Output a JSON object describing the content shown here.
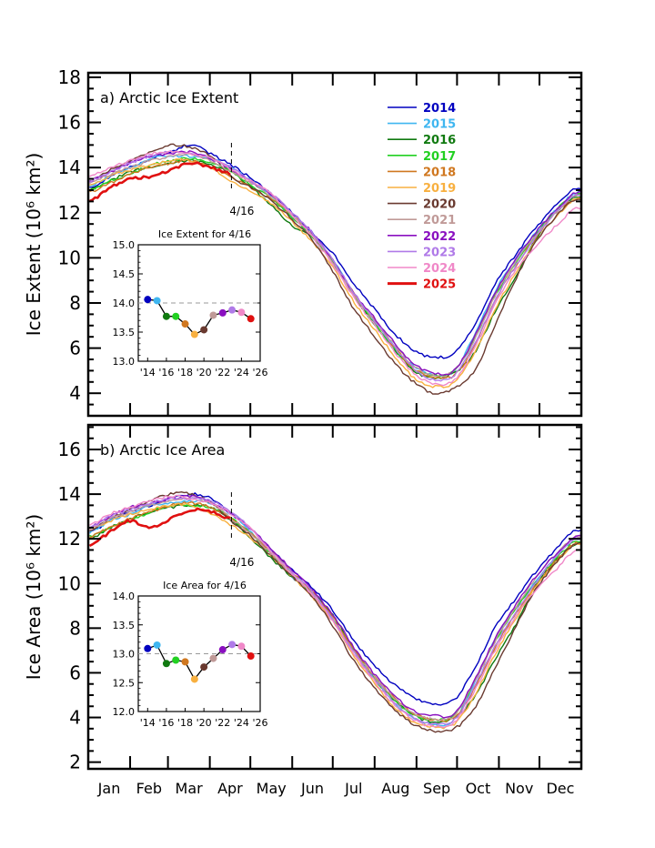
{
  "chart_data": [
    {
      "type": "line",
      "panel": "a",
      "title": "a) Arctic Ice Extent",
      "xlabel": "",
      "ylabel": "Ice Extent (10⁶ km²)",
      "ylim": [
        3,
        18.2
      ],
      "xlim": [
        0,
        365
      ],
      "yticks": [
        4,
        6,
        8,
        10,
        12,
        14,
        16,
        18
      ],
      "x_tick_labels": [
        "Jan",
        "Feb",
        "Mar",
        "Apr",
        "May",
        "Jun",
        "Jul",
        "Aug",
        "Sep",
        "Oct",
        "Nov",
        "Dec"
      ],
      "month_start_days": [
        0,
        31,
        59,
        90,
        120,
        151,
        181,
        212,
        243,
        273,
        304,
        334
      ],
      "marker": {
        "day": 106,
        "label": "4/16"
      },
      "x": [
        1,
        16,
        31,
        46,
        61,
        76,
        91,
        106,
        121,
        136,
        151,
        166,
        181,
        196,
        211,
        226,
        241,
        256,
        271,
        286,
        301,
        316,
        331,
        346,
        361
      ],
      "series": [
        {
          "name": "2014",
          "color": "#0000c0",
          "values": [
            13.1,
            13.6,
            14.0,
            14.4,
            14.7,
            15.0,
            14.6,
            14.1,
            13.5,
            12.8,
            12.0,
            11.1,
            10.2,
            8.9,
            7.8,
            6.7,
            5.9,
            5.6,
            5.8,
            7.0,
            8.8,
            10.1,
            11.3,
            12.3,
            13.1
          ]
        },
        {
          "name": "2015",
          "color": "#3fb6f0",
          "values": [
            13.2,
            13.6,
            14.0,
            14.4,
            14.5,
            14.5,
            14.4,
            14.0,
            13.4,
            12.7,
            11.8,
            11.0,
            9.9,
            8.5,
            7.3,
            6.1,
            5.2,
            4.8,
            5.0,
            6.6,
            8.5,
            9.9,
            11.1,
            12.1,
            12.9
          ]
        },
        {
          "name": "2016",
          "color": "#107a10",
          "values": [
            13.0,
            13.4,
            13.8,
            14.0,
            14.2,
            14.3,
            14.1,
            13.8,
            13.1,
            12.3,
            11.4,
            10.9,
            9.9,
            8.4,
            7.1,
            6.0,
            5.0,
            4.7,
            4.9,
            5.8,
            7.6,
            9.1,
            10.8,
            12.0,
            12.7
          ]
        },
        {
          "name": "2017",
          "color": "#22d022",
          "values": [
            13.0,
            13.4,
            13.7,
            14.1,
            14.3,
            14.4,
            14.2,
            13.8,
            13.2,
            12.6,
            11.8,
            10.9,
            9.8,
            8.4,
            7.2,
            6.0,
            5.1,
            4.8,
            5.0,
            6.4,
            8.3,
            9.7,
            11.0,
            12.1,
            12.8
          ]
        },
        {
          "name": "2018",
          "color": "#d07820",
          "values": [
            12.9,
            13.3,
            13.7,
            14.0,
            14.2,
            14.3,
            14.0,
            13.6,
            13.1,
            12.6,
            11.9,
            11.0,
            9.9,
            8.5,
            7.3,
            6.1,
            5.1,
            4.7,
            4.8,
            6.1,
            8.1,
            9.6,
            10.9,
            12.0,
            12.6
          ]
        },
        {
          "name": "2019",
          "color": "#f8b040",
          "values": [
            13.2,
            13.6,
            13.9,
            14.1,
            14.3,
            14.3,
            14.0,
            13.4,
            12.9,
            12.4,
            11.6,
            10.7,
            9.6,
            8.1,
            6.9,
            5.7,
            4.7,
            4.3,
            4.5,
            5.8,
            7.7,
            9.3,
            10.7,
            11.8,
            12.6
          ]
        },
        {
          "name": "2020",
          "color": "#6a3a30",
          "values": [
            13.4,
            13.9,
            14.3,
            14.7,
            15.0,
            14.9,
            14.5,
            13.6,
            13.1,
            12.5,
            11.7,
            10.8,
            9.4,
            7.8,
            6.6,
            5.4,
            4.5,
            4.0,
            4.2,
            5.0,
            7.0,
            9.0,
            10.7,
            11.8,
            12.6
          ]
        },
        {
          "name": "2021",
          "color": "#c09a98",
          "values": [
            13.3,
            13.7,
            14.0,
            14.3,
            14.5,
            14.6,
            14.3,
            13.8,
            13.3,
            12.7,
            11.9,
            11.0,
            9.8,
            8.4,
            7.3,
            6.2,
            5.2,
            4.8,
            5.0,
            6.4,
            8.3,
            9.8,
            11.0,
            12.0,
            12.8
          ]
        },
        {
          "name": "2022",
          "color": "#8a10c0",
          "values": [
            13.4,
            13.8,
            14.2,
            14.5,
            14.6,
            14.7,
            14.4,
            13.9,
            13.4,
            12.8,
            12.0,
            11.1,
            9.9,
            8.5,
            7.4,
            6.3,
            5.3,
            4.9,
            5.0,
            6.5,
            8.4,
            9.9,
            11.1,
            12.1,
            12.9
          ]
        },
        {
          "name": "2023",
          "color": "#b07ae8",
          "values": [
            13.4,
            13.8,
            14.2,
            14.5,
            14.7,
            14.6,
            14.4,
            14.0,
            13.4,
            12.8,
            12.0,
            11.1,
            9.9,
            8.5,
            7.3,
            6.1,
            5.1,
            4.6,
            4.8,
            6.2,
            8.1,
            9.6,
            10.9,
            12.0,
            12.8
          ]
        },
        {
          "name": "2024",
          "color": "#f088c8",
          "values": [
            13.6,
            14.0,
            14.3,
            14.6,
            14.7,
            14.6,
            14.4,
            13.9,
            13.4,
            12.8,
            11.9,
            10.9,
            9.7,
            8.3,
            7.1,
            5.9,
            4.9,
            4.4,
            4.6,
            6.0,
            7.9,
            9.4,
            10.5,
            11.4,
            12.2
          ]
        },
        {
          "name": "2025",
          "color": "#e01010",
          "values": [
            12.5,
            13.1,
            13.5,
            13.6,
            13.9,
            14.2,
            14.0,
            13.7
          ]
        }
      ],
      "inset": {
        "title": "Ice Extent for 4/16",
        "ylim": [
          13.0,
          15.0
        ],
        "yticks": [
          "13.0",
          "13.5",
          "14.0",
          "14.5",
          "15.0"
        ],
        "xlim": [
          2013,
          2026
        ],
        "xticks": [
          "'14",
          "'16",
          "'18",
          "'20",
          "'22",
          "'24",
          "'26"
        ],
        "reference_line": 14.0,
        "years": [
          2014,
          2015,
          2016,
          2017,
          2018,
          2019,
          2020,
          2021,
          2022,
          2023,
          2024,
          2025
        ],
        "values": [
          14.06,
          14.04,
          13.77,
          13.77,
          13.64,
          13.46,
          13.54,
          13.79,
          13.83,
          13.88,
          13.84,
          13.73
        ]
      }
    },
    {
      "type": "line",
      "panel": "b",
      "title": "b) Arctic Ice Area",
      "xlabel": "",
      "ylabel": "Ice Area (10⁶ km²)",
      "ylim": [
        1.7,
        17.1
      ],
      "xlim": [
        0,
        365
      ],
      "yticks": [
        2,
        4,
        6,
        8,
        10,
        12,
        14,
        16
      ],
      "x_tick_labels": [
        "Jan",
        "Feb",
        "Mar",
        "Apr",
        "May",
        "Jun",
        "Jul",
        "Aug",
        "Sep",
        "Oct",
        "Nov",
        "Dec"
      ],
      "month_start_days": [
        0,
        31,
        59,
        90,
        120,
        151,
        181,
        212,
        243,
        273,
        304,
        334
      ],
      "marker": {
        "day": 106,
        "label": "4/16"
      },
      "x": [
        1,
        16,
        31,
        46,
        61,
        76,
        91,
        106,
        121,
        136,
        151,
        166,
        181,
        196,
        211,
        226,
        241,
        256,
        271,
        286,
        301,
        316,
        331,
        346,
        361
      ],
      "series": [
        {
          "name": "2014",
          "color": "#0000c0",
          "values": [
            12.3,
            12.8,
            13.2,
            13.5,
            13.8,
            14.0,
            13.8,
            13.1,
            12.4,
            11.5,
            10.6,
            9.8,
            8.8,
            7.5,
            6.4,
            5.5,
            4.9,
            4.6,
            4.8,
            6.2,
            8.0,
            9.3,
            10.5,
            11.5,
            12.4
          ]
        },
        {
          "name": "2015",
          "color": "#3fb6f0",
          "values": [
            12.3,
            12.8,
            13.1,
            13.5,
            13.6,
            13.7,
            13.6,
            13.1,
            12.3,
            11.3,
            10.3,
            9.5,
            8.4,
            7.0,
            5.8,
            4.7,
            4.0,
            3.7,
            3.9,
            5.6,
            7.5,
            8.9,
            10.1,
            11.2,
            12.0
          ]
        },
        {
          "name": "2016",
          "color": "#107a10",
          "values": [
            12.0,
            12.5,
            12.9,
            13.2,
            13.4,
            13.5,
            13.4,
            12.8,
            12.0,
            11.1,
            10.3,
            9.6,
            8.6,
            7.1,
            5.9,
            4.8,
            4.1,
            3.8,
            4.0,
            4.9,
            6.6,
            8.1,
            9.9,
            11.0,
            11.8
          ]
        },
        {
          "name": "2017",
          "color": "#22d022",
          "values": [
            12.1,
            12.5,
            12.8,
            13.2,
            13.5,
            13.5,
            13.4,
            12.9,
            12.2,
            11.3,
            10.4,
            9.5,
            8.4,
            7.0,
            5.8,
            4.8,
            4.1,
            3.9,
            4.1,
            5.6,
            7.4,
            8.8,
            10.0,
            11.1,
            11.9
          ]
        },
        {
          "name": "2018",
          "color": "#d07820",
          "values": [
            12.1,
            12.5,
            12.9,
            13.2,
            13.5,
            13.6,
            13.4,
            12.9,
            12.2,
            11.4,
            10.5,
            9.6,
            8.5,
            7.1,
            5.9,
            4.9,
            4.2,
            3.9,
            4.0,
            5.3,
            7.1,
            8.6,
            9.9,
            11.0,
            11.8
          ]
        },
        {
          "name": "2019",
          "color": "#f8b040",
          "values": [
            12.4,
            12.8,
            13.1,
            13.3,
            13.5,
            13.5,
            13.1,
            12.6,
            12.0,
            11.2,
            10.3,
            9.4,
            8.3,
            6.8,
            5.6,
            4.5,
            3.8,
            3.6,
            3.7,
            5.0,
            6.8,
            8.4,
            9.8,
            10.9,
            11.8
          ]
        },
        {
          "name": "2020",
          "color": "#6a3a30",
          "values": [
            12.4,
            12.9,
            13.3,
            13.7,
            14.0,
            14.0,
            13.6,
            12.8,
            12.1,
            11.2,
            10.3,
            9.4,
            8.1,
            6.6,
            5.4,
            4.4,
            3.7,
            3.4,
            3.5,
            4.4,
            6.2,
            8.0,
            9.7,
            10.9,
            11.8
          ]
        },
        {
          "name": "2021",
          "color": "#c09a98",
          "values": [
            12.4,
            12.9,
            13.2,
            13.5,
            13.7,
            13.8,
            13.6,
            12.9,
            12.2,
            11.3,
            10.4,
            9.5,
            8.4,
            7.0,
            5.9,
            4.9,
            4.2,
            3.9,
            4.1,
            5.6,
            7.4,
            8.9,
            10.2,
            11.3,
            12.1
          ]
        },
        {
          "name": "2022",
          "color": "#8a10c0",
          "values": [
            12.5,
            13.0,
            13.4,
            13.6,
            13.8,
            13.9,
            13.6,
            13.1,
            12.4,
            11.5,
            10.6,
            9.7,
            8.6,
            7.2,
            6.0,
            5.0,
            4.3,
            4.1,
            4.2,
            5.7,
            7.5,
            9.0,
            10.3,
            11.3,
            12.1
          ]
        },
        {
          "name": "2023",
          "color": "#b07ae8",
          "values": [
            12.5,
            13.0,
            13.3,
            13.6,
            13.8,
            13.8,
            13.7,
            13.2,
            12.4,
            11.4,
            10.5,
            9.6,
            8.4,
            7.0,
            5.8,
            4.7,
            4.0,
            3.7,
            3.9,
            5.4,
            7.2,
            8.7,
            10.0,
            11.2,
            12.0
          ]
        },
        {
          "name": "2024",
          "color": "#f088c8",
          "values": [
            12.6,
            13.1,
            13.4,
            13.7,
            13.9,
            13.8,
            13.6,
            13.1,
            12.4,
            11.4,
            10.4,
            9.5,
            8.3,
            6.9,
            5.7,
            4.6,
            3.9,
            3.6,
            3.8,
            5.2,
            7.0,
            8.5,
            9.7,
            10.6,
            11.5
          ]
        },
        {
          "name": "2025",
          "color": "#e01010",
          "values": [
            11.7,
            12.3,
            12.8,
            12.5,
            12.9,
            13.3,
            13.2,
            12.9
          ]
        }
      ],
      "inset": {
        "title": "Ice Area for 4/16",
        "ylim": [
          12.0,
          14.0
        ],
        "yticks": [
          "12.0",
          "12.5",
          "13.0",
          "13.5",
          "14.0"
        ],
        "xlim": [
          2013,
          2026
        ],
        "xticks": [
          "'14",
          "'16",
          "'18",
          "'20",
          "'22",
          "'24",
          "'26"
        ],
        "reference_line": 13.0,
        "years": [
          2014,
          2015,
          2016,
          2017,
          2018,
          2019,
          2020,
          2021,
          2022,
          2023,
          2024,
          2025
        ],
        "values": [
          13.09,
          13.15,
          12.83,
          12.89,
          12.86,
          12.56,
          12.77,
          12.92,
          13.07,
          13.16,
          13.13,
          12.96
        ]
      }
    }
  ],
  "legend": {
    "position": "top-right",
    "entries": [
      {
        "label": "2014",
        "color": "#0000c0"
      },
      {
        "label": "2015",
        "color": "#3fb6f0"
      },
      {
        "label": "2016",
        "color": "#107a10"
      },
      {
        "label": "2017",
        "color": "#22d022"
      },
      {
        "label": "2018",
        "color": "#d07820"
      },
      {
        "label": "2019",
        "color": "#f8b040"
      },
      {
        "label": "2020",
        "color": "#6a3a30"
      },
      {
        "label": "2021",
        "color": "#c09a98"
      },
      {
        "label": "2022",
        "color": "#8a10c0"
      },
      {
        "label": "2023",
        "color": "#b07ae8"
      },
      {
        "label": "2024",
        "color": "#f088c8"
      },
      {
        "label": "2025",
        "color": "#e01010"
      }
    ]
  }
}
